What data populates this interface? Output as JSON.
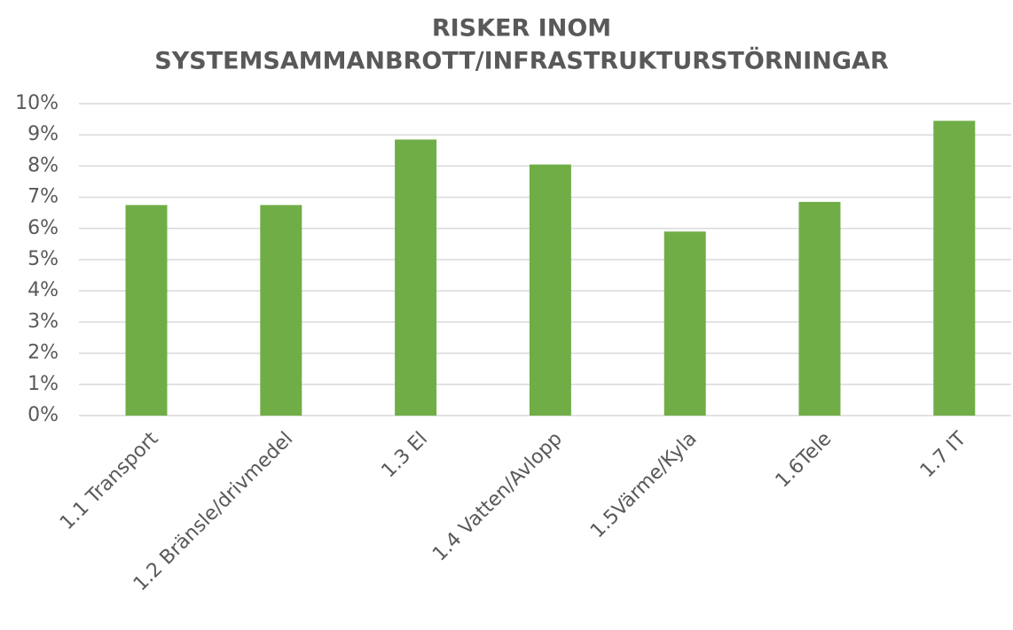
{
  "chart_data": {
    "type": "bar",
    "title": [
      "RISKER INOM",
      "SYSTEMSAMMANBROTT/INFRASTRUKTURSTÖRNINGAR"
    ],
    "categories": [
      "1.1 Transport",
      "1.2 Bränsle/drivmedel",
      "1.3 El",
      "1.4 Vatten/Avlopp",
      "1.5Värme/Kyla",
      "1.6Tele",
      "1.7 IT"
    ],
    "values": [
      6.75,
      6.75,
      8.85,
      8.05,
      5.9,
      6.85,
      9.45
    ],
    "color": "#70ad47",
    "ylim": [
      0,
      10
    ],
    "yticks": [
      {
        "value": 0,
        "label": "0%"
      },
      {
        "value": 1,
        "label": "1%"
      },
      {
        "value": 2,
        "label": "2%"
      },
      {
        "value": 3,
        "label": "3%"
      },
      {
        "value": 4,
        "label": "4%"
      },
      {
        "value": 5,
        "label": "5%"
      },
      {
        "value": 6,
        "label": "6%"
      },
      {
        "value": 7,
        "label": "7%"
      },
      {
        "value": 8,
        "label": "8%"
      },
      {
        "value": 9,
        "label": "9%"
      },
      {
        "value": 10,
        "label": "10%"
      }
    ],
    "grid": true
  }
}
